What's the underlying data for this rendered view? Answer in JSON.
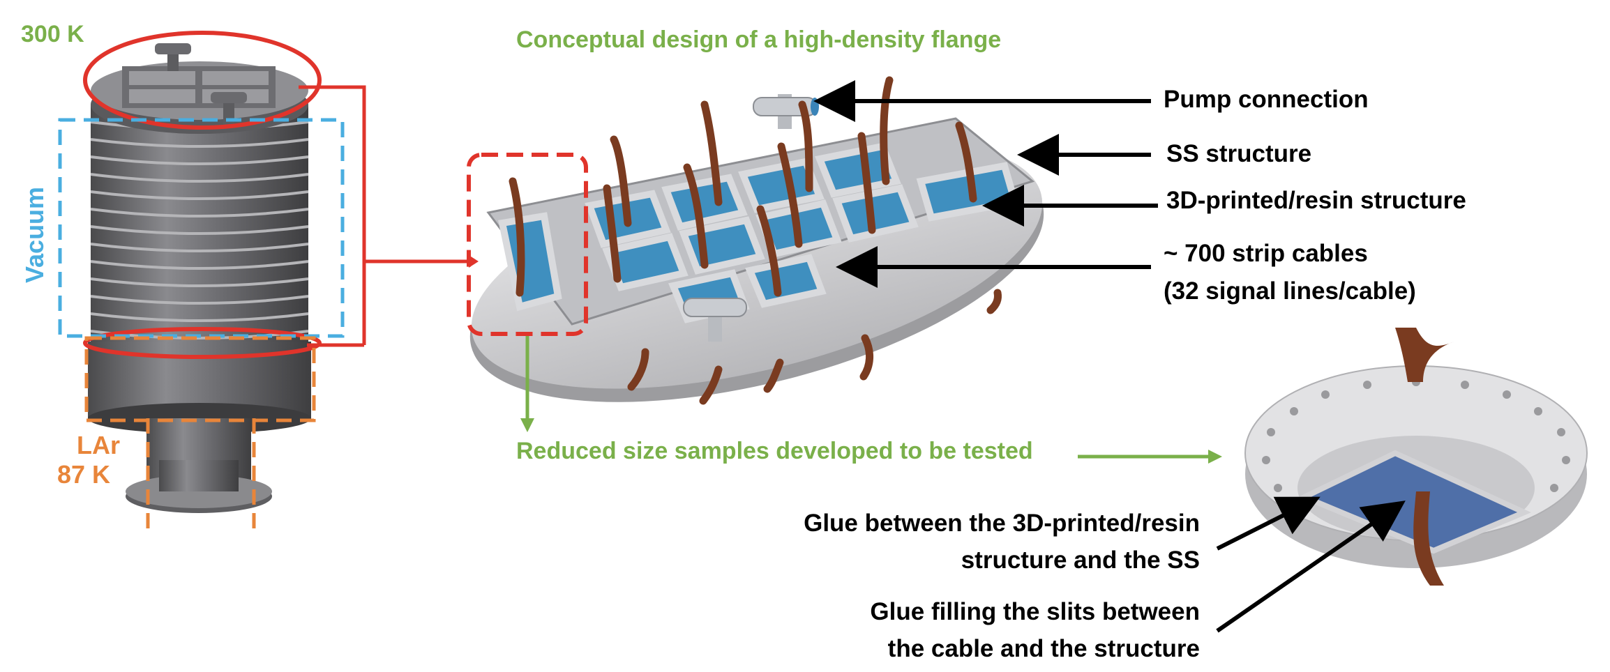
{
  "title": "Conceptual design of a high-density flange",
  "cryostat": {
    "warm_label": "300 K",
    "vacuum_label": "Vacuum",
    "lar_label": "LAr",
    "cold_label": "87 K"
  },
  "callouts": {
    "pump": "Pump connection",
    "ss": "SS structure",
    "resin": "3D-printed/resin structure",
    "cables_line1": "~ 700 strip cables",
    "cables_line2": "(32 signal lines/cable)"
  },
  "samples_label": "Reduced size samples developed to be tested",
  "glue": {
    "a_line1": "Glue between the 3D-printed/resin",
    "a_line2": "structure and the SS",
    "b_line1": "Glue filling the slits between",
    "b_line2": "the cable and the structure"
  },
  "colors": {
    "red": "#e0342b",
    "blue": "#4aaee0",
    "orange": "#e8853a",
    "green": "#7ab04a",
    "copper": "#7a3b20",
    "resin": "#3f8fbf"
  }
}
